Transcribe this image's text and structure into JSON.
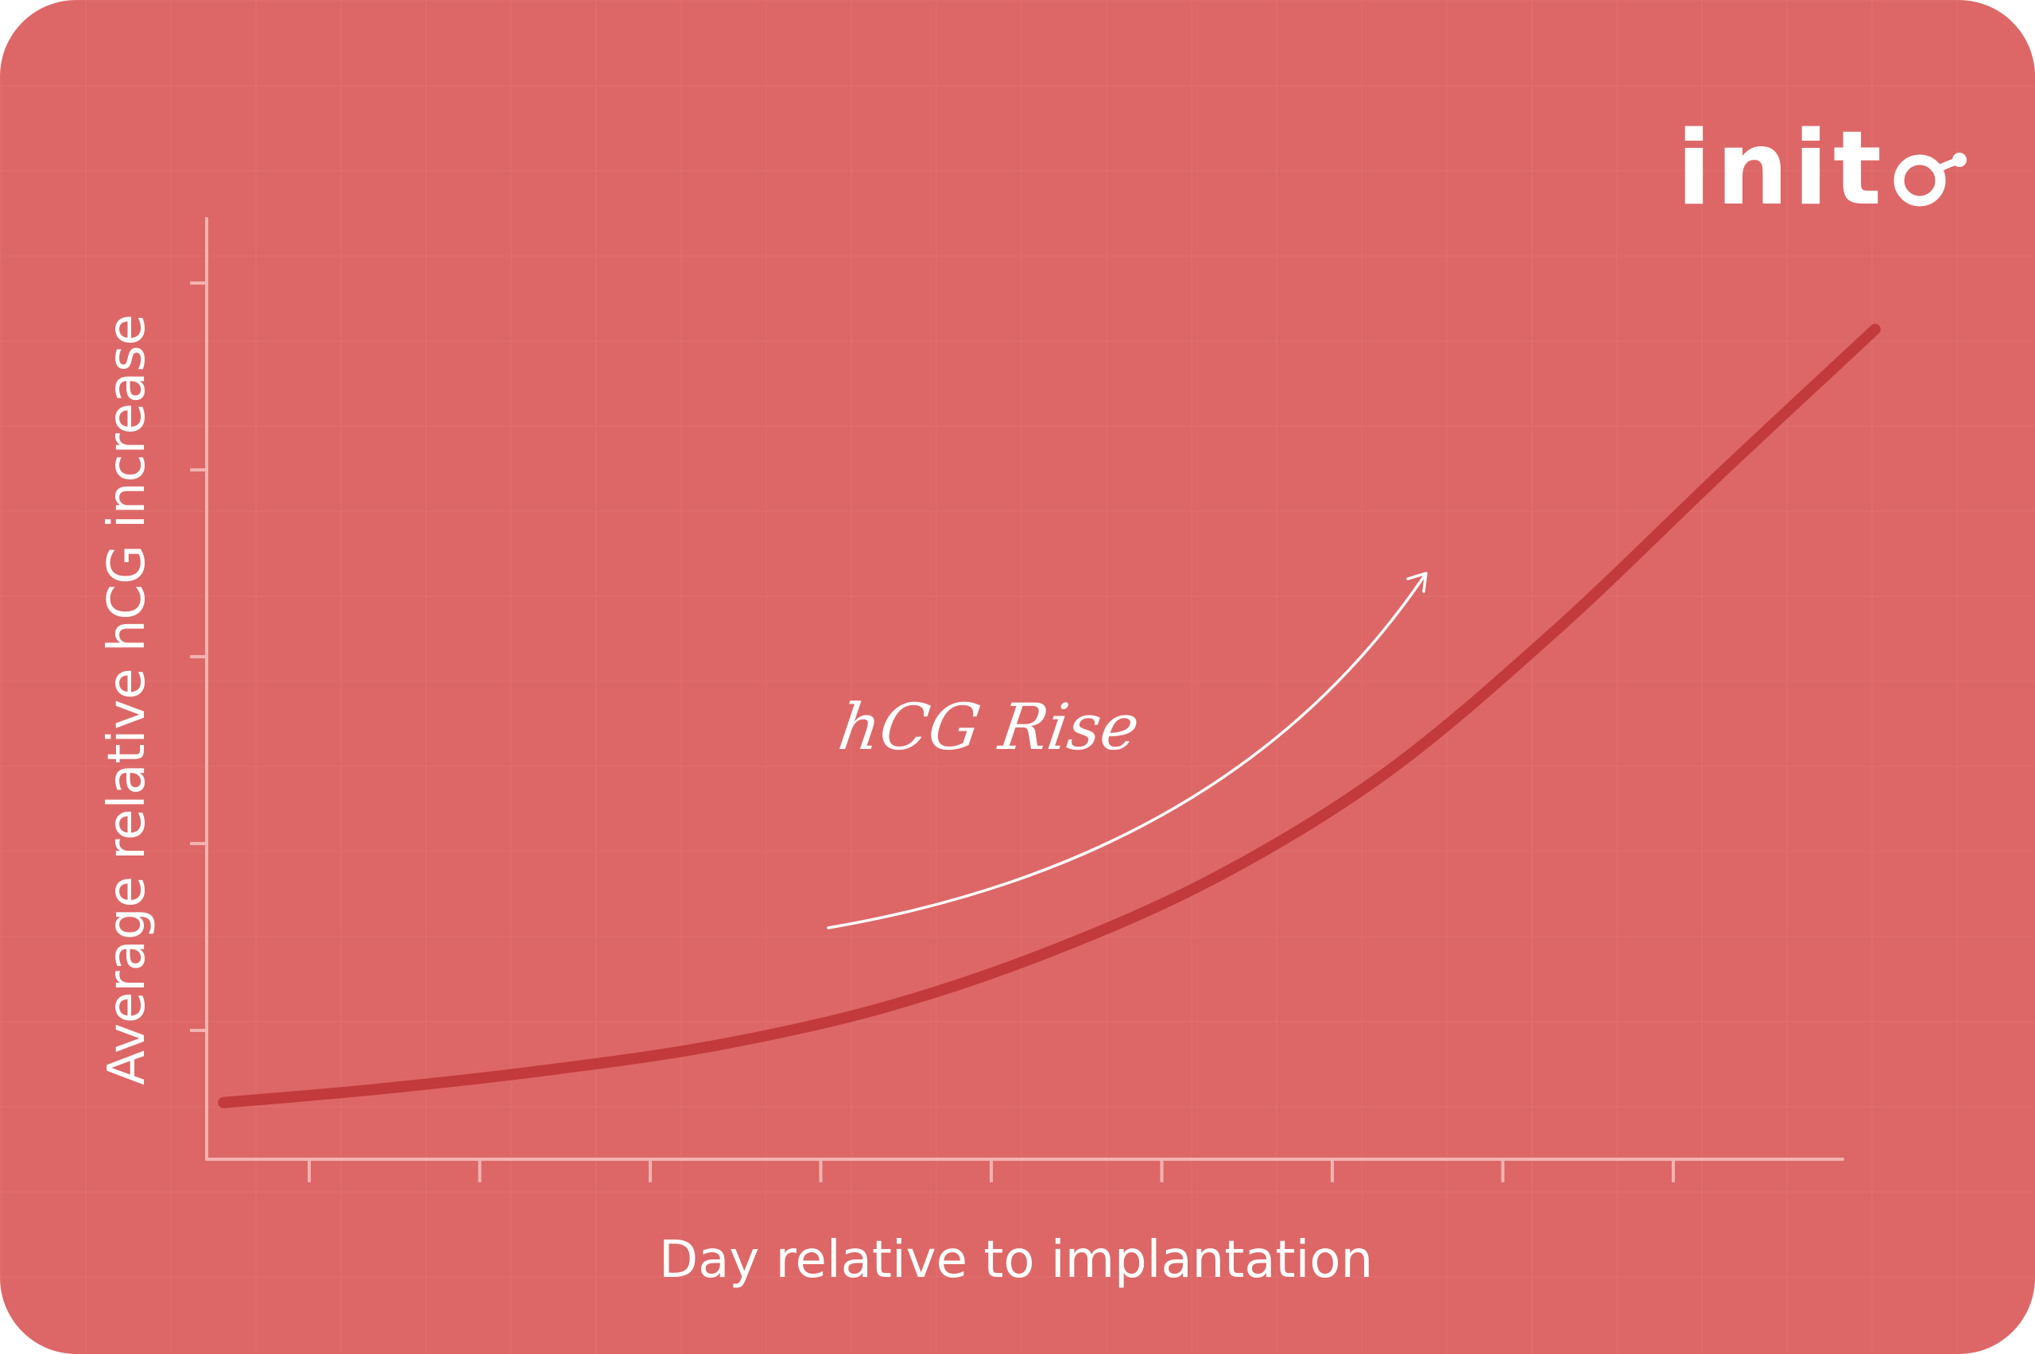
{
  "brand": {
    "logo_text": "init",
    "logo_mark_icon": "inito-o-ring-icon"
  },
  "colors": {
    "background": "#dd6766",
    "curve": "#c23a3b",
    "axis": "#f2b3b1",
    "text": "#ffffff"
  },
  "chart_data": {
    "type": "line",
    "title": "",
    "xlabel": "Day relative to implantation",
    "ylabel": "Average relative hCG increase",
    "x_tick_count": 9,
    "y_tick_count": 5,
    "xlim": [
      0,
      10
    ],
    "ylim": [
      0,
      5
    ],
    "grid": false,
    "series": [
      {
        "x": [
          0.1,
          1.0,
          2.0,
          3.0,
          4.0,
          5.0,
          6.0,
          7.0,
          8.0,
          9.0,
          9.9
        ],
        "values": [
          0.3,
          0.37,
          0.47,
          0.6,
          0.8,
          1.1,
          1.5,
          2.05,
          2.8,
          3.65,
          4.4
        ]
      }
    ],
    "annotation": {
      "text": "hCG Rise",
      "arrow": "up-right"
    }
  }
}
